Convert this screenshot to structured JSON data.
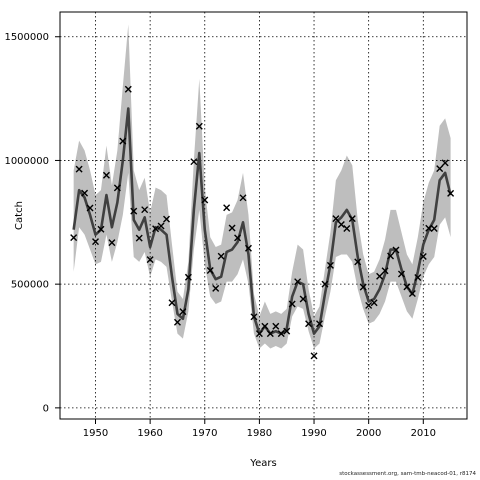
{
  "chart_data": {
    "type": "line",
    "xlabel": "Years",
    "ylabel": "Catch",
    "xlim": [
      1943.5,
      2018
    ],
    "ylim": [
      -45000,
      1600000
    ],
    "x_ticks": [
      1950,
      1960,
      1970,
      1980,
      1990,
      2000,
      2010
    ],
    "x_tick_labels": [
      "1950",
      "1960",
      "1970",
      "1980",
      "1990",
      "2000",
      "2010"
    ],
    "y_ticks": [
      0,
      500000,
      1000000,
      1500000
    ],
    "y_tick_labels": [
      "0",
      "500000",
      "1000000",
      "1500000"
    ],
    "grid": "dotted",
    "legend": "none",
    "colors": {
      "band": "#bebebe",
      "line": "#404040",
      "points": "#000000"
    },
    "years": [
      1946,
      1947,
      1948,
      1949,
      1950,
      1951,
      1952,
      1953,
      1954,
      1955,
      1956,
      1957,
      1958,
      1959,
      1960,
      1961,
      1962,
      1963,
      1964,
      1965,
      1966,
      1967,
      1968,
      1969,
      1970,
      1971,
      1972,
      1973,
      1974,
      1975,
      1976,
      1977,
      1978,
      1979,
      1980,
      1981,
      1982,
      1983,
      1984,
      1985,
      1986,
      1987,
      1988,
      1989,
      1990,
      1991,
      1992,
      1993,
      1994,
      1995,
      1996,
      1997,
      1998,
      1999,
      2000,
      2001,
      2002,
      2003,
      2004,
      2005,
      2006,
      2007,
      2008,
      2009,
      2010,
      2011,
      2012,
      2013,
      2014,
      2015
    ],
    "series": [
      {
        "role": "estimate",
        "values": [
          720000,
          880000,
          850000,
          780000,
          700000,
          720000,
          860000,
          730000,
          830000,
          1000000,
          1210000,
          760000,
          720000,
          770000,
          650000,
          730000,
          720000,
          700000,
          530000,
          380000,
          360000,
          480000,
          800000,
          1030000,
          720000,
          560000,
          520000,
          530000,
          630000,
          640000,
          670000,
          750000,
          620000,
          370000,
          300000,
          330000,
          300000,
          310000,
          300000,
          320000,
          450000,
          510000,
          500000,
          380000,
          300000,
          330000,
          460000,
          580000,
          750000,
          770000,
          800000,
          760000,
          610000,
          500000,
          430000,
          440000,
          480000,
          540000,
          640000,
          640000,
          560000,
          490000,
          460000,
          550000,
          660000,
          720000,
          760000,
          920000,
          950000,
          860000
        ]
      },
      {
        "role": "upper",
        "values": [
          960000,
          1080000,
          1040000,
          960000,
          860000,
          880000,
          1060000,
          900000,
          1040000,
          1300000,
          1550000,
          960000,
          880000,
          930000,
          790000,
          890000,
          880000,
          860000,
          660000,
          470000,
          440000,
          590000,
          1000000,
          1330000,
          890000,
          690000,
          650000,
          660000,
          780000,
          790000,
          840000,
          950000,
          780000,
          460000,
          370000,
          430000,
          380000,
          390000,
          380000,
          400000,
          550000,
          660000,
          640000,
          480000,
          370000,
          410000,
          560000,
          710000,
          920000,
          960000,
          1020000,
          980000,
          760000,
          620000,
          540000,
          550000,
          600000,
          680000,
          800000,
          800000,
          710000,
          620000,
          580000,
          690000,
          830000,
          910000,
          960000,
          1140000,
          1170000,
          1090000
        ]
      },
      {
        "role": "lower",
        "values": [
          550000,
          730000,
          700000,
          640000,
          580000,
          590000,
          700000,
          590000,
          670000,
          780000,
          950000,
          610000,
          590000,
          630000,
          530000,
          600000,
          590000,
          570000,
          430000,
          300000,
          280000,
          390000,
          640000,
          800000,
          580000,
          450000,
          420000,
          430000,
          510000,
          510000,
          540000,
          600000,
          500000,
          300000,
          240000,
          260000,
          240000,
          250000,
          240000,
          260000,
          370000,
          410000,
          400000,
          310000,
          240000,
          260000,
          370000,
          470000,
          610000,
          620000,
          620000,
          590000,
          480000,
          400000,
          340000,
          350000,
          380000,
          430000,
          510000,
          510000,
          450000,
          390000,
          360000,
          440000,
          530000,
          580000,
          610000,
          740000,
          770000,
          690000
        ]
      },
      {
        "role": "observed",
        "values": [
          688000,
          965000,
          868000,
          808000,
          672000,
          722000,
          940000,
          668000,
          889000,
          1078000,
          1288000,
          795000,
          686000,
          801000,
          599000,
          724000,
          735000,
          763000,
          425000,
          346000,
          389000,
          528000,
          995000,
          1138000,
          840000,
          555000,
          483000,
          613000,
          809000,
          727000,
          687000,
          849000,
          645000,
          368000,
          300000,
          330000,
          300000,
          330000,
          300000,
          310000,
          420000,
          510000,
          440000,
          340000,
          210000,
          340000,
          500000,
          576000,
          765000,
          741000,
          725000,
          765000,
          590000,
          488000,
          414000,
          425000,
          532000,
          554000,
          614000,
          638000,
          541000,
          489000,
          462000,
          527000,
          612000,
          726000,
          725000,
          967000,
          990000,
          867000
        ]
      }
    ]
  },
  "footer": {
    "note": "stockassessment.org, sam-tmb-neacod-01, r8174"
  }
}
